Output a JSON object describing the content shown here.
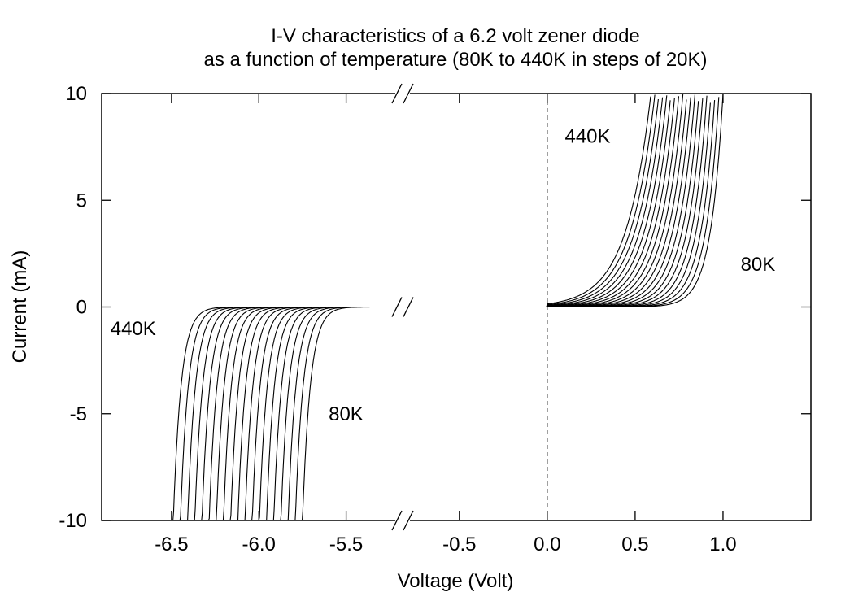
{
  "chart_data": {
    "type": "line",
    "title": "I-V characteristics of a 6.2 volt zener diode",
    "subtitle": "as a function of temperature (80K to 440K in steps of 20K)",
    "xlabel": "Voltage (Volt)",
    "ylabel": "Current (mA)",
    "ylim": [
      -10,
      10
    ],
    "x_axis_break": true,
    "x_segments": [
      {
        "xlim": [
          -6.9,
          -5.2
        ]
      },
      {
        "xlim": [
          -0.8,
          1.5
        ]
      }
    ],
    "x_ticks": [
      {
        "value": -6.5,
        "label": "-6.5"
      },
      {
        "value": -6.0,
        "label": "-6.0"
      },
      {
        "value": -5.5,
        "label": "-5.5"
      },
      {
        "value": -0.5,
        "label": "-0.5"
      },
      {
        "value": 0.0,
        "label": "0.0"
      },
      {
        "value": 0.5,
        "label": "0.5"
      },
      {
        "value": 1.0,
        "label": "1.0"
      }
    ],
    "y_ticks": [
      {
        "value": 10,
        "label": "10"
      },
      {
        "value": 5,
        "label": "5"
      },
      {
        "value": 0,
        "label": "0"
      },
      {
        "value": -5,
        "label": "-5"
      },
      {
        "value": -10,
        "label": "-10"
      }
    ],
    "grid": false,
    "zero_reference_lines": "dashed",
    "temperature_range_K": [
      80,
      440
    ],
    "temperature_step_K": 20,
    "series_count": 19,
    "forward_knee_voltage_V": {
      "80K": 1.0,
      "440K": 0.59
    },
    "reverse_breakdown_voltage_V": {
      "80K": -5.75,
      "440K": -6.49
    },
    "series_color": "#000000",
    "annotations": [
      {
        "text": "440K",
        "region": "forward",
        "at": [
          0.1,
          8.0
        ]
      },
      {
        "text": "80K",
        "region": "forward",
        "at": [
          1.1,
          2.0
        ]
      },
      {
        "text": "440K",
        "region": "reverse",
        "at": [
          -6.85,
          -1.0
        ]
      },
      {
        "text": "80K",
        "region": "reverse",
        "at": [
          -5.6,
          -5.0
        ]
      }
    ]
  }
}
